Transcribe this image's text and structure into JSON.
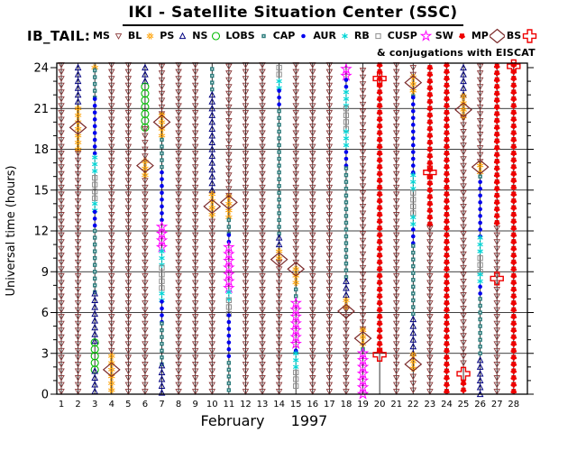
{
  "title": "IKI - Satellite Situation Center (SSC)",
  "dataset_label": "IB_TAIL:",
  "conjugation_note": "& conjugations with EISCAT",
  "colors": {
    "MS": "#8B3A3A",
    "BL": "#FFA000",
    "PS": "#000080",
    "NS": "#00BB00",
    "LOBS": "#2E7D7D",
    "CAP": "#0000EE",
    "AUR": "#00D5D5",
    "RB": "#8C8C8C",
    "CUSP": "#FF00FF",
    "SW": "#EE0000",
    "MP": "#7B2A2A",
    "BS": "#EE0000",
    "axis": "#000000"
  },
  "legend": [
    {
      "label": "MS",
      "region": "MS"
    },
    {
      "label": "BL",
      "region": "BL"
    },
    {
      "label": "PS",
      "region": "PS"
    },
    {
      "label": "NS",
      "region": "NS"
    },
    {
      "label": "LOBS",
      "region": "LOBS"
    },
    {
      "label": "CAP",
      "region": "CAP"
    },
    {
      "label": "AUR",
      "region": "AUR"
    },
    {
      "label": "RB",
      "region": "RB"
    },
    {
      "label": "CUSP",
      "region": "CUSP"
    },
    {
      "label": "SW",
      "region": "SW"
    },
    {
      "label": "MP",
      "region": "MP"
    },
    {
      "label": "BS",
      "region": "BS"
    }
  ],
  "chart_data": {
    "type": "scatter",
    "ylabel": "Universal time (hours)",
    "xlabel_month": "February",
    "xlabel_year": "1997",
    "y_ticks": [
      0,
      3,
      6,
      9,
      12,
      15,
      18,
      21,
      24
    ],
    "x_ticks": [
      1,
      2,
      3,
      4,
      5,
      6,
      7,
      8,
      9,
      10,
      11,
      12,
      13,
      14,
      15,
      16,
      17,
      18,
      19,
      20,
      21,
      22,
      23,
      24,
      25,
      26,
      27,
      28
    ],
    "ylim": [
      0,
      24.35
    ],
    "grid": "on",
    "marker_step_hours": 0.5,
    "days": [
      {
        "d": 1,
        "seg": [
          [
            "MS",
            0.2,
            24.2
          ]
        ],
        "ev": []
      },
      {
        "d": 2,
        "seg": [
          [
            "PS",
            21.5,
            24.2
          ],
          [
            "BL",
            18.0,
            21.4
          ],
          [
            "MS",
            0.2,
            17.9
          ]
        ],
        "ev": [
          [
            "MP",
            19.6
          ]
        ]
      },
      {
        "d": 3,
        "seg": [
          [
            "BL",
            24.0,
            24.2
          ],
          [
            "LOBS",
            21.8,
            23.9
          ],
          [
            "CAP",
            17.7,
            21.7
          ],
          [
            "AUR",
            16.4,
            17.6
          ],
          [
            "RB",
            14.4,
            16.3
          ],
          [
            "AUR",
            13.5,
            14.3
          ],
          [
            "CAP",
            12.4,
            13.4
          ],
          [
            "LOBS",
            7.5,
            12.3
          ],
          [
            "PS",
            3.9,
            7.4
          ],
          [
            "NS",
            1.8,
            3.8
          ],
          [
            "PS",
            0.2,
            1.7
          ]
        ],
        "ev": []
      },
      {
        "d": 4,
        "seg": [
          [
            "MS",
            3.2,
            24.2
          ],
          [
            "BL",
            0.3,
            3.1
          ]
        ],
        "ev": [
          [
            "MP",
            1.8
          ]
        ]
      },
      {
        "d": 5,
        "seg": [
          [
            "MS",
            0.2,
            24.2
          ]
        ],
        "ev": []
      },
      {
        "d": 6,
        "seg": [
          [
            "PS",
            23.0,
            24.2
          ],
          [
            "NS",
            19.6,
            22.9
          ],
          [
            "MS",
            17.5,
            19.5
          ],
          [
            "BL",
            16.1,
            17.4
          ],
          [
            "MS",
            0.2,
            16.0
          ]
        ],
        "ev": [
          [
            "MP",
            16.8
          ]
        ]
      },
      {
        "d": 7,
        "seg": [
          [
            "MS",
            20.6,
            24.2
          ],
          [
            "BL",
            19.0,
            20.5
          ],
          [
            "LOBS",
            16.7,
            18.9
          ],
          [
            "CAP",
            12.8,
            16.6
          ],
          [
            "CUSP",
            10.8,
            12.7
          ],
          [
            "AUR",
            9.5,
            10.7
          ],
          [
            "RB",
            7.8,
            9.4
          ],
          [
            "AUR",
            6.9,
            7.7
          ],
          [
            "CAP",
            5.3,
            6.8
          ],
          [
            "LOBS",
            2.2,
            5.2
          ],
          [
            "PS",
            0.1,
            2.1
          ]
        ],
        "ev": [
          [
            "MP",
            20.0
          ]
        ]
      },
      {
        "d": 8,
        "seg": [
          [
            "MS",
            0.2,
            24.2
          ]
        ],
        "ev": []
      },
      {
        "d": 9,
        "seg": [
          [
            "MS",
            0.2,
            24.2
          ]
        ],
        "ev": []
      },
      {
        "d": 10,
        "seg": [
          [
            "LOBS",
            22.4,
            24.2
          ],
          [
            "PS",
            15.0,
            22.3
          ],
          [
            "BL",
            13.2,
            14.9
          ],
          [
            "MS",
            0.2,
            13.1
          ]
        ],
        "ev": [
          [
            "MP",
            13.8
          ]
        ]
      },
      {
        "d": 11,
        "seg": [
          [
            "MS",
            14.6,
            24.2
          ],
          [
            "BL",
            13.0,
            14.5
          ],
          [
            "LOBS",
            11.8,
            12.9
          ],
          [
            "CAP",
            11.2,
            11.7
          ],
          [
            "CUSP",
            7.8,
            11.1
          ],
          [
            "AUR",
            7.0,
            7.7
          ],
          [
            "RB",
            5.9,
            6.9
          ],
          [
            "CAP",
            2.8,
            5.8
          ],
          [
            "LOBS",
            0.3,
            2.7
          ]
        ],
        "ev": [
          [
            "MP",
            14.1
          ]
        ]
      },
      {
        "d": 12,
        "seg": [
          [
            "MS",
            0.2,
            24.2
          ]
        ],
        "ev": []
      },
      {
        "d": 13,
        "seg": [
          [
            "MS",
            0.2,
            24.2
          ]
        ],
        "ev": []
      },
      {
        "d": 14,
        "seg": [
          [
            "RB",
            23.5,
            24.2
          ],
          [
            "AUR",
            22.5,
            23.4
          ],
          [
            "CAP",
            21.3,
            22.4
          ],
          [
            "LOBS",
            11.8,
            21.2
          ],
          [
            "PS",
            11.0,
            11.7
          ],
          [
            "BL",
            10.0,
            10.9
          ],
          [
            "MS",
            0.2,
            9.8
          ]
        ],
        "ev": [
          [
            "MP",
            9.9
          ]
        ]
      },
      {
        "d": 15,
        "seg": [
          [
            "MS",
            9.7,
            24.2
          ],
          [
            "BL",
            8.2,
            9.6
          ],
          [
            "LOBS",
            7.2,
            8.1
          ],
          [
            "CUSP",
            3.7,
            7.1
          ],
          [
            "CAP",
            3.2,
            3.6
          ],
          [
            "AUR",
            2.0,
            3.1
          ],
          [
            "RB",
            0.6,
            1.9
          ]
        ],
        "ev": [
          [
            "MP",
            9.2
          ]
        ]
      },
      {
        "d": 16,
        "seg": [
          [
            "MS",
            0.2,
            24.2
          ]
        ],
        "ev": []
      },
      {
        "d": 17,
        "seg": [
          [
            "MS",
            0.2,
            24.2
          ]
        ],
        "ev": []
      },
      {
        "d": 18,
        "seg": [
          [
            "CUSP",
            23.4,
            24.2
          ],
          [
            "CAP",
            22.6,
            23.3
          ],
          [
            "AUR",
            21.2,
            22.5
          ],
          [
            "RB",
            19.5,
            21.1
          ],
          [
            "AUR",
            18.3,
            19.4
          ],
          [
            "CAP",
            16.8,
            18.2
          ],
          [
            "LOBS",
            8.6,
            16.7
          ],
          [
            "PS",
            7.3,
            8.5
          ],
          [
            "BL",
            6.4,
            7.2
          ],
          [
            "MS",
            0.2,
            6.3
          ]
        ],
        "ev": [
          [
            "MP",
            6.1
          ]
        ]
      },
      {
        "d": 19,
        "seg": [
          [
            "MS",
            4.8,
            24.2
          ],
          [
            "BL",
            3.7,
            4.7
          ],
          [
            "LOBS",
            3.3,
            3.6
          ],
          [
            "CUSP",
            0.0,
            3.1
          ]
        ],
        "ev": [
          [
            "MP",
            4.1
          ]
        ]
      },
      {
        "d": 20,
        "seg": [
          [
            "SW",
            3.2,
            24.2
          ]
        ],
        "ev": [
          [
            "BS",
            23.2
          ],
          [
            "BS",
            2.9
          ]
        ]
      },
      {
        "d": 21,
        "seg": [
          [
            "MS",
            0.2,
            24.2
          ]
        ],
        "ev": []
      },
      {
        "d": 22,
        "seg": [
          [
            "MS",
            23.5,
            24.2
          ],
          [
            "BL",
            22.3,
            23.4
          ],
          [
            "LOBS",
            21.9,
            22.2
          ],
          [
            "CAP",
            16.3,
            21.8
          ],
          [
            "AUR",
            15.1,
            16.2
          ],
          [
            "RB",
            13.3,
            15.0
          ],
          [
            "AUR",
            12.5,
            13.2
          ],
          [
            "CAP",
            11.1,
            12.4
          ],
          [
            "LOBS",
            5.9,
            11.0
          ],
          [
            "PS",
            3.0,
            5.8
          ],
          [
            "BL",
            1.9,
            2.9
          ],
          [
            "MS",
            0.3,
            1.6
          ]
        ],
        "ev": [
          [
            "MP",
            22.9
          ],
          [
            "MP",
            2.2
          ]
        ]
      },
      {
        "d": 23,
        "seg": [
          [
            "SW",
            12.5,
            24.2
          ],
          [
            "MS",
            0.2,
            12.4
          ]
        ],
        "ev": [
          [
            "BS",
            16.3
          ]
        ]
      },
      {
        "d": 24,
        "seg": [
          [
            "SW",
            0.2,
            24.2
          ]
        ],
        "ev": []
      },
      {
        "d": 25,
        "seg": [
          [
            "PS",
            22.0,
            24.2
          ],
          [
            "BL",
            20.4,
            21.9
          ],
          [
            "MS",
            2.3,
            20.3
          ],
          [
            "SW",
            0.3,
            1.1
          ]
        ],
        "ev": [
          [
            "MP",
            20.9
          ],
          [
            "BS",
            1.5
          ]
        ]
      },
      {
        "d": 26,
        "seg": [
          [
            "MS",
            17.1,
            24.2
          ],
          [
            "BL",
            16.3,
            17.0
          ],
          [
            "LOBS",
            16.0,
            16.2
          ],
          [
            "CAP",
            11.6,
            15.9
          ],
          [
            "AUR",
            10.5,
            11.5
          ],
          [
            "RB",
            9.0,
            10.4
          ],
          [
            "AUR",
            8.3,
            8.9
          ],
          [
            "CAP",
            7.4,
            8.2
          ],
          [
            "LOBS",
            3.0,
            7.3
          ],
          [
            "PS",
            0.0,
            2.9
          ]
        ],
        "ev": [
          [
            "MP",
            16.7
          ]
        ]
      },
      {
        "d": 27,
        "seg": [
          [
            "SW",
            12.6,
            24.2
          ],
          [
            "MS",
            0.2,
            12.5
          ]
        ],
        "ev": [
          [
            "BS",
            8.5
          ]
        ]
      },
      {
        "d": 28,
        "seg": [
          [
            "SW",
            0.2,
            24.2
          ]
        ],
        "ev": [
          [
            "BS",
            24.1
          ]
        ]
      }
    ]
  }
}
